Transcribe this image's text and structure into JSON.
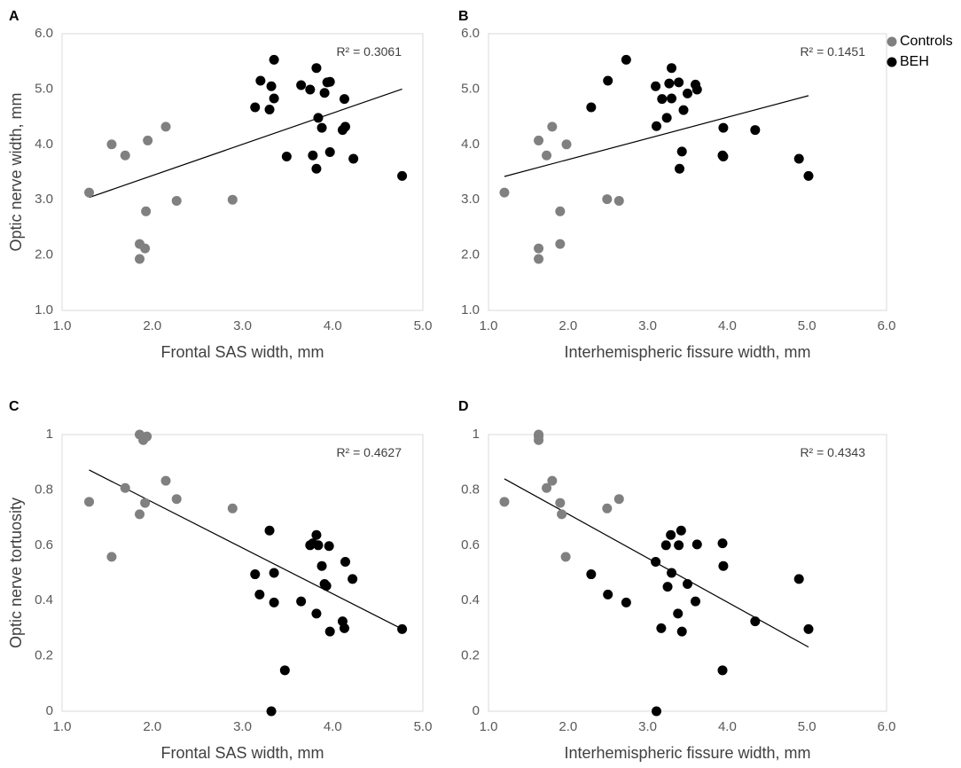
{
  "figure_name": "optic-nerve-correlation-figure",
  "colors": {
    "controls": "#808080",
    "beh": "#000000",
    "axis": "#d9d9d9",
    "trend": "#000000"
  },
  "legend": {
    "items": [
      {
        "label": "Controls",
        "color": "#808080"
      },
      {
        "label": "BEH",
        "color": "#000000"
      }
    ]
  },
  "chart_data": [
    {
      "panel": "A",
      "type": "scatter",
      "xlabel": "Frontal SAS width, mm",
      "ylabel": "Optic nerve width, mm",
      "xlim": [
        1.0,
        5.0
      ],
      "ylim": [
        1.0,
        6.0
      ],
      "xticks": [
        1.0,
        2.0,
        3.0,
        4.0,
        5.0
      ],
      "yticks": [
        1.0,
        2.0,
        3.0,
        4.0,
        5.0,
        6.0
      ],
      "xtick_labels": [
        "1.0",
        "2.0",
        "3.0",
        "4.0",
        "5.0"
      ],
      "ytick_labels": [
        "1.0",
        "2.0",
        "3.0",
        "4.0",
        "5.0",
        "6.0"
      ],
      "r2_label": "R² = 0.3061",
      "trendline": [
        [
          1.3,
          3.04
        ],
        [
          4.77,
          5.0
        ]
      ],
      "series": [
        {
          "name": "Controls",
          "points": [
            [
              1.3,
              3.13
            ],
            [
              1.55,
              4.0
            ],
            [
              1.7,
              3.8
            ],
            [
              1.95,
              4.07
            ],
            [
              2.15,
              4.32
            ],
            [
              1.93,
              2.79
            ],
            [
              2.27,
              2.98
            ],
            [
              1.86,
              2.2
            ],
            [
              1.92,
              2.12
            ],
            [
              1.86,
              1.93
            ],
            [
              2.89,
              3.0
            ]
          ]
        },
        {
          "name": "BEH",
          "points": [
            [
              3.14,
              4.67
            ],
            [
              3.2,
              5.15
            ],
            [
              3.3,
              4.63
            ],
            [
              3.32,
              5.05
            ],
            [
              3.35,
              5.53
            ],
            [
              3.35,
              4.83
            ],
            [
              3.49,
              3.78
            ],
            [
              3.65,
              5.07
            ],
            [
              3.75,
              4.99
            ],
            [
              3.78,
              3.8
            ],
            [
              3.82,
              5.38
            ],
            [
              3.82,
              3.56
            ],
            [
              3.84,
              4.48
            ],
            [
              3.88,
              4.3
            ],
            [
              3.91,
              4.93
            ],
            [
              3.94,
              5.12
            ],
            [
              3.97,
              5.13
            ],
            [
              3.97,
              3.86
            ],
            [
              4.11,
              4.26
            ],
            [
              4.13,
              4.82
            ],
            [
              4.14,
              4.32
            ],
            [
              4.23,
              3.74
            ],
            [
              4.77,
              3.43
            ]
          ]
        }
      ]
    },
    {
      "panel": "B",
      "type": "scatter",
      "xlabel": "Interhemispheric fissure width, mm",
      "ylabel": "",
      "xlim": [
        1.0,
        6.0
      ],
      "ylim": [
        1.0,
        6.0
      ],
      "xticks": [
        1.0,
        2.0,
        3.0,
        4.0,
        5.0,
        6.0
      ],
      "yticks": [
        1.0,
        2.0,
        3.0,
        4.0,
        5.0,
        6.0
      ],
      "xtick_labels": [
        "1.0",
        "2.0",
        "3.0",
        "4.0",
        "5.0",
        "6.0"
      ],
      "ytick_labels": [
        "1.0",
        "2.0",
        "3.0",
        "4.0",
        "5.0",
        "6.0"
      ],
      "r2_label": "R² = 0.1451",
      "trendline": [
        [
          1.2,
          3.42
        ],
        [
          5.02,
          4.88
        ]
      ],
      "series": [
        {
          "name": "Controls",
          "points": [
            [
              1.2,
              3.13
            ],
            [
              1.63,
              4.07
            ],
            [
              1.73,
              3.8
            ],
            [
              1.8,
              4.32
            ],
            [
              1.98,
              4.0
            ],
            [
              1.9,
              2.79
            ],
            [
              1.9,
              2.2
            ],
            [
              1.63,
              2.12
            ],
            [
              1.63,
              1.93
            ],
            [
              2.49,
              3.01
            ],
            [
              2.64,
              2.98
            ]
          ]
        },
        {
          "name": "BEH",
          "points": [
            [
              2.29,
              4.67
            ],
            [
              2.5,
              5.15
            ],
            [
              2.73,
              5.53
            ],
            [
              3.1,
              5.05
            ],
            [
              3.11,
              4.33
            ],
            [
              3.18,
              4.82
            ],
            [
              3.24,
              4.48
            ],
            [
              3.27,
              5.1
            ],
            [
              3.3,
              5.38
            ],
            [
              3.3,
              4.83
            ],
            [
              3.39,
              5.12
            ],
            [
              3.4,
              3.56
            ],
            [
              3.43,
              3.87
            ],
            [
              3.45,
              4.62
            ],
            [
              3.5,
              4.92
            ],
            [
              3.6,
              5.08
            ],
            [
              3.62,
              4.99
            ],
            [
              3.94,
              3.8
            ],
            [
              3.95,
              4.3
            ],
            [
              3.95,
              3.78
            ],
            [
              4.35,
              4.26
            ],
            [
              4.9,
              3.74
            ],
            [
              5.02,
              3.43
            ]
          ]
        }
      ]
    },
    {
      "panel": "C",
      "type": "scatter",
      "xlabel": "Frontal SAS width, mm",
      "ylabel": "Optic nerve tortuosity",
      "xlim": [
        1.0,
        5.0
      ],
      "ylim": [
        0,
        1
      ],
      "xticks": [
        1.0,
        2.0,
        3.0,
        4.0,
        5.0
      ],
      "yticks": [
        0,
        0.2,
        0.4,
        0.6,
        0.8,
        1
      ],
      "xtick_labels": [
        "1.0",
        "2.0",
        "3.0",
        "4.0",
        "5.0"
      ],
      "ytick_labels": [
        "0",
        "0.2",
        "0.4",
        "0.6",
        "0.8",
        "1"
      ],
      "r2_label": "R² = 0.4627",
      "trendline": [
        [
          1.3,
          0.872
        ],
        [
          4.77,
          0.297
        ]
      ],
      "series": [
        {
          "name": "Controls",
          "points": [
            [
              1.3,
              0.757
            ],
            [
              1.55,
              0.558
            ],
            [
              1.7,
              0.807
            ],
            [
              1.86,
              1.0
            ],
            [
              1.9,
              0.98
            ],
            [
              1.94,
              0.993
            ],
            [
              1.86,
              0.712
            ],
            [
              1.92,
              0.753
            ],
            [
              2.15,
              0.833
            ],
            [
              2.27,
              0.767
            ],
            [
              2.89,
              0.733
            ]
          ]
        },
        {
          "name": "BEH",
          "points": [
            [
              3.14,
              0.495
            ],
            [
              3.19,
              0.422
            ],
            [
              3.3,
              0.653
            ],
            [
              3.35,
              0.5
            ],
            [
              3.35,
              0.393
            ],
            [
              3.32,
              0.0
            ],
            [
              3.47,
              0.148
            ],
            [
              3.65,
              0.397
            ],
            [
              3.75,
              0.6
            ],
            [
              3.78,
              0.607
            ],
            [
              3.82,
              0.637
            ],
            [
              3.84,
              0.6
            ],
            [
              3.82,
              0.353
            ],
            [
              3.88,
              0.525
            ],
            [
              3.91,
              0.46
            ],
            [
              3.93,
              0.453
            ],
            [
              3.96,
              0.597
            ],
            [
              3.97,
              0.288
            ],
            [
              4.11,
              0.325
            ],
            [
              4.13,
              0.3
            ],
            [
              4.14,
              0.54
            ],
            [
              4.22,
              0.478
            ],
            [
              4.77,
              0.297
            ]
          ]
        }
      ]
    },
    {
      "panel": "D",
      "type": "scatter",
      "xlabel": "Interhemispheric fissure width, mm",
      "ylabel": "",
      "xlim": [
        1.0,
        6.0
      ],
      "ylim": [
        0,
        1
      ],
      "xticks": [
        1.0,
        2.0,
        3.0,
        4.0,
        5.0,
        6.0
      ],
      "yticks": [
        0,
        0.2,
        0.4,
        0.6,
        0.8,
        1
      ],
      "xtick_labels": [
        "1.0",
        "2.0",
        "3.0",
        "4.0",
        "5.0",
        "6.0"
      ],
      "ytick_labels": [
        "0",
        "0.2",
        "0.4",
        "0.6",
        "0.8",
        "1"
      ],
      "r2_label": "R² = 0.4343",
      "trendline": [
        [
          1.2,
          0.84
        ],
        [
          5.02,
          0.232
        ]
      ],
      "series": [
        {
          "name": "Controls",
          "points": [
            [
              1.2,
              0.757
            ],
            [
              1.63,
              1.0
            ],
            [
              1.63,
              0.98
            ],
            [
              1.63,
              0.993
            ],
            [
              1.73,
              0.807
            ],
            [
              1.8,
              0.833
            ],
            [
              1.9,
              0.753
            ],
            [
              1.92,
              0.712
            ],
            [
              1.97,
              0.558
            ],
            [
              2.49,
              0.733
            ],
            [
              2.64,
              0.767
            ]
          ]
        },
        {
          "name": "BEH",
          "points": [
            [
              2.29,
              0.495
            ],
            [
              2.5,
              0.422
            ],
            [
              2.73,
              0.393
            ],
            [
              3.1,
              0.54
            ],
            [
              3.11,
              0.0
            ],
            [
              3.17,
              0.3
            ],
            [
              3.23,
              0.6
            ],
            [
              3.25,
              0.45
            ],
            [
              3.29,
              0.637
            ],
            [
              3.3,
              0.5
            ],
            [
              3.38,
              0.353
            ],
            [
              3.39,
              0.6
            ],
            [
              3.42,
              0.653
            ],
            [
              3.43,
              0.288
            ],
            [
              3.5,
              0.46
            ],
            [
              3.6,
              0.397
            ],
            [
              3.62,
              0.603
            ],
            [
              3.94,
              0.607
            ],
            [
              3.95,
              0.525
            ],
            [
              3.94,
              0.148
            ],
            [
              4.35,
              0.325
            ],
            [
              4.9,
              0.478
            ],
            [
              5.02,
              0.297
            ]
          ]
        }
      ]
    }
  ]
}
